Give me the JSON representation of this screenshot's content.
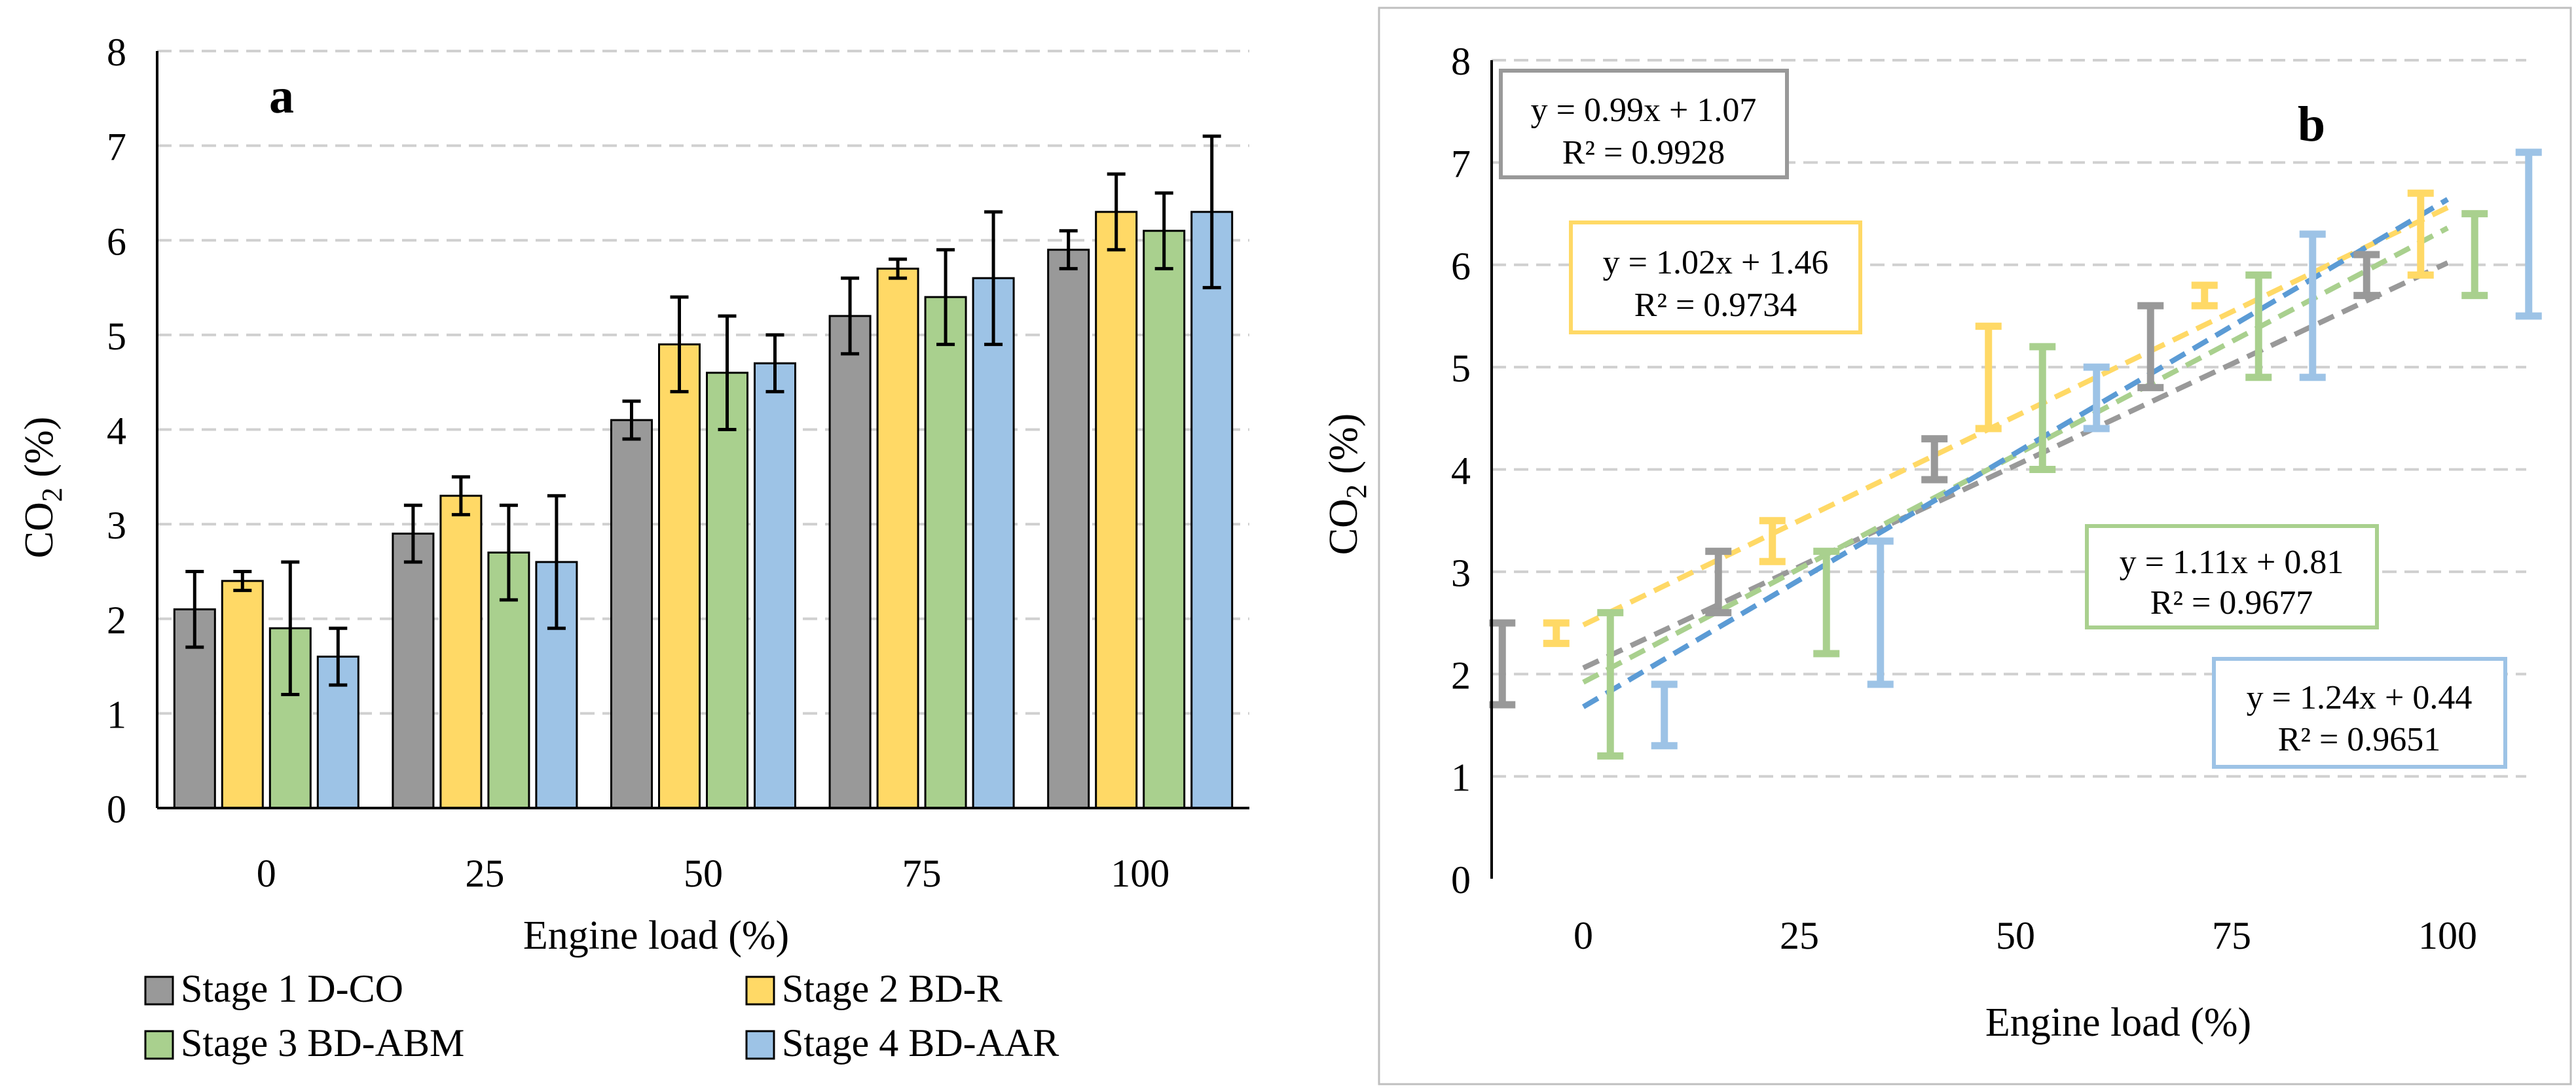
{
  "colors": {
    "series": [
      "#999999",
      "#FFD966",
      "#A9D08E",
      "#9DC3E6"
    ],
    "series_edge": "#000000",
    "errorbar_a": "#000000",
    "errorbar_b": [
      "#999999",
      "#FFD966",
      "#A9D08E",
      "#9DC3E6"
    ],
    "trend": [
      "#999999",
      "#FFD966",
      "#A9D08E",
      "#5B9BD5"
    ],
    "gridline": "#D0D0D0",
    "axis": "#000000"
  },
  "chart_data": [
    {
      "type": "bar",
      "panel_label": "a",
      "categories": [
        "0",
        "25",
        "50",
        "75",
        "100"
      ],
      "xlabel": "Engine load (%)",
      "ylabel": {
        "main": "CO",
        "sub": "2",
        "tail": " (%)"
      },
      "ylim": [
        0,
        8
      ],
      "yticks": [
        "0",
        "1",
        "2",
        "3",
        "4",
        "5",
        "6",
        "7",
        "8"
      ],
      "grid": true,
      "legend_position": "bottom",
      "series": [
        {
          "name": "Stage 1 D-CO",
          "values": [
            2.1,
            2.9,
            4.1,
            5.2,
            5.9
          ],
          "error": [
            0.4,
            0.3,
            0.2,
            0.4,
            0.2
          ]
        },
        {
          "name": "Stage 2 BD-R",
          "values": [
            2.4,
            3.3,
            4.9,
            5.7,
            6.3
          ],
          "error": [
            0.1,
            0.2,
            0.5,
            0.1,
            0.4
          ]
        },
        {
          "name": "Stage 3 BD-ABM",
          "values": [
            1.9,
            2.7,
            4.6,
            5.4,
            6.1
          ],
          "error": [
            0.7,
            0.5,
            0.6,
            0.5,
            0.4
          ]
        },
        {
          "name": "Stage 4 BD-AAR",
          "values": [
            1.6,
            2.6,
            4.7,
            5.6,
            6.3
          ],
          "error": [
            0.3,
            0.7,
            0.3,
            0.7,
            0.8
          ]
        }
      ]
    },
    {
      "type": "scatter",
      "panel_label": "b",
      "categories": [
        "0",
        "25",
        "50",
        "75",
        "100"
      ],
      "xlabel": "Engine load (%)",
      "ylabel": {
        "main": "CO",
        "sub": "2",
        "tail": " (%)"
      },
      "ylim": [
        0,
        8
      ],
      "yticks": [
        "0",
        "1",
        "2",
        "3",
        "4",
        "5",
        "6",
        "7",
        "8"
      ],
      "grid": true,
      "marker": "error bars only",
      "series": [
        {
          "values": [
            2.1,
            2.9,
            4.1,
            5.2,
            5.9
          ],
          "error": [
            0.4,
            0.3,
            0.2,
            0.4,
            0.2
          ]
        },
        {
          "values": [
            2.4,
            3.3,
            4.9,
            5.7,
            6.3
          ],
          "error": [
            0.1,
            0.2,
            0.5,
            0.1,
            0.4
          ]
        },
        {
          "values": [
            1.9,
            2.7,
            4.6,
            5.4,
            6.1
          ],
          "error": [
            0.7,
            0.5,
            0.6,
            0.5,
            0.4
          ]
        },
        {
          "values": [
            1.6,
            2.6,
            4.7,
            5.6,
            6.3
          ],
          "error": [
            0.3,
            0.7,
            0.3,
            0.7,
            0.8
          ]
        }
      ],
      "trendlines": [
        {
          "equation": "y = 0.99x + 1.07",
          "r2": "R² = 0.9928",
          "slope": 0.99,
          "intercept": 1.07,
          "start_y": 2.06,
          "end_y": 6.02
        },
        {
          "equation": "y = 1.02x + 1.46",
          "r2": "R² = 0.9734",
          "slope": 1.02,
          "intercept": 1.46,
          "start_y": 2.48,
          "end_y": 6.56
        },
        {
          "equation": "y = 1.11x + 0.81",
          "r2": "R² = 0.9677",
          "slope": 1.11,
          "intercept": 0.81,
          "start_y": 1.92,
          "end_y": 6.36
        },
        {
          "equation": "y = 1.24x + 0.44",
          "r2": "R² = 0.9651",
          "slope": 1.24,
          "intercept": 0.44,
          "start_y": 1.68,
          "end_y": 6.64
        }
      ]
    }
  ]
}
